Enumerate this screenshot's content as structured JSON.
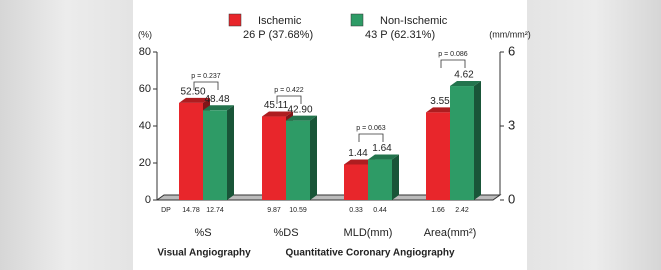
{
  "chart_data": {
    "type": "bar3d",
    "legend_subtitles": [
      "26 P (37.68%)",
      "43 P (62.31%)"
    ],
    "y_label": "(%)",
    "y2_label": "(mm/mm²)",
    "categories": [
      "%S",
      "%DS",
      "MLD(mm)",
      "Area(mm²)"
    ],
    "category_axes": [
      "y",
      "y",
      "y2",
      "y2"
    ],
    "group_labels": [
      "Visual Angiography",
      "Quantitative Coronary Angiography"
    ],
    "series": [
      {
        "name": "Ischemic",
        "color": "#e8262b",
        "values": [
          52.5,
          45.11,
          1.44,
          3.55
        ],
        "value_labels": [
          "52.50",
          "45.11",
          "1.44",
          "3.55"
        ],
        "dp": [
          14.78,
          9.87,
          0.33,
          1.66
        ]
      },
      {
        "name": "Non-Ischemic",
        "color": "#2e9b66",
        "values": [
          48.48,
          42.9,
          1.64,
          4.62
        ],
        "value_labels": [
          "48.48",
          "42.90",
          "1.64",
          "4.62"
        ],
        "dp": [
          12.74,
          10.59,
          0.44,
          2.42
        ]
      }
    ],
    "dp_label": "DP",
    "p_values": [
      "p = 0.237",
      "p = 0.422",
      "p = 0.063",
      "p = 0.086"
    ],
    "ylim": [
      0,
      80
    ],
    "yticks": [
      0,
      20,
      40,
      60,
      80
    ],
    "y2lim": [
      0,
      6
    ],
    "y2ticks": [
      0,
      3,
      6
    ]
  }
}
